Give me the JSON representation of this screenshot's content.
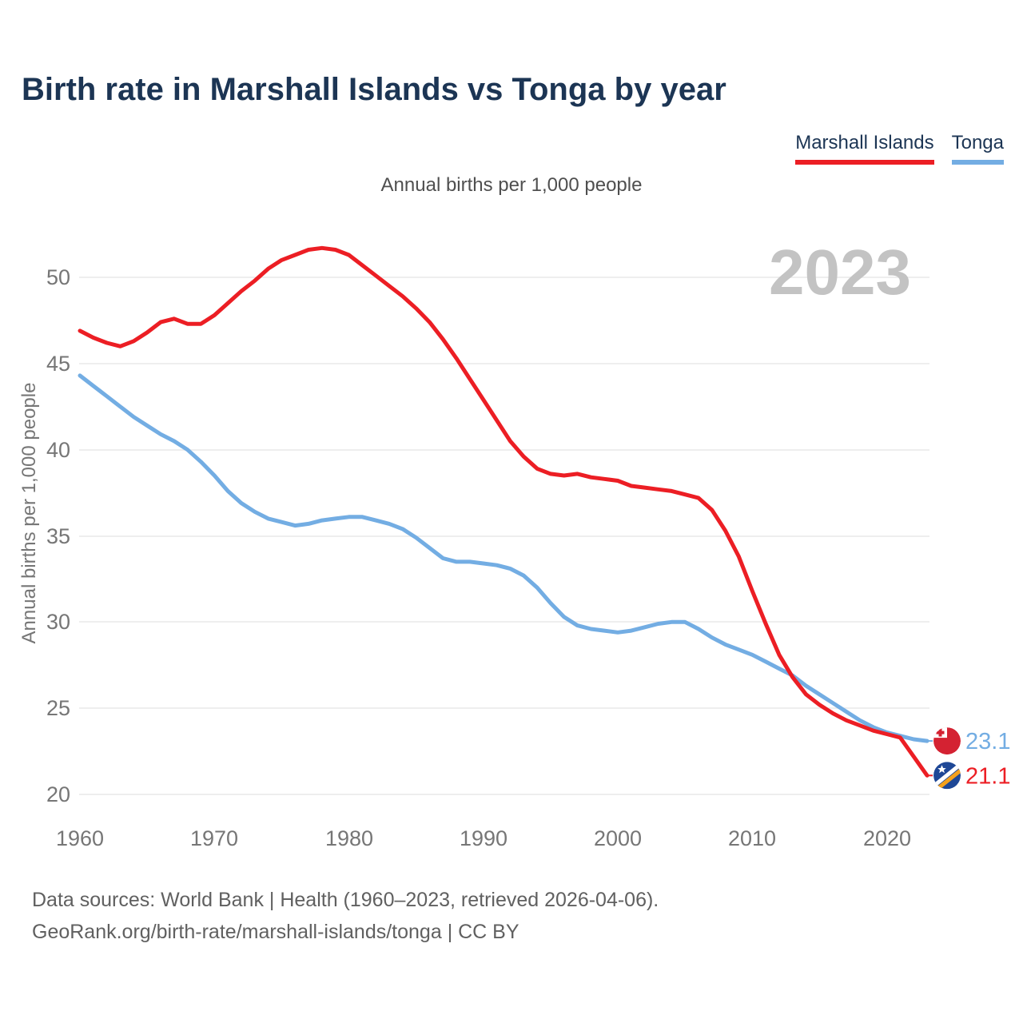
{
  "title": "Birth rate in Marshall Islands vs Tonga by year",
  "subtitle": "Annual births per 1,000 people",
  "watermark": "2023",
  "legend": {
    "marshall_label": "Marshall Islands",
    "tonga_label": "Tonga"
  },
  "footer": {
    "line1": "Data sources: World Bank | Health (1960–2023, retrieved 2026-04-06).",
    "line2": "GeoRank.org/birth-rate/marshall-islands/tonga | CC BY"
  },
  "colors": {
    "marshall_red": "#ec1e24",
    "tonga_blue": "#73ade3",
    "title_navy": "#1c3554",
    "axis_gray": "#767676",
    "watermark_gray": "#c3c3c3",
    "gridline_gray": "#e9e9e9",
    "tonga_flag_red": "#d42232",
    "marshall_flag_blue": "#1e4796",
    "marshall_flag_orange": "#f5a11c"
  },
  "chart_data": {
    "type": "line",
    "title": "Annual births per 1,000 people",
    "xlabel": "",
    "ylabel": "Annual births per 1,000 people",
    "x_range": [
      1960,
      2023
    ],
    "ylim": [
      19,
      52.5
    ],
    "grid": "horizontal",
    "legend_position": "top-right",
    "ytick_labels": [
      "50",
      "45",
      "40",
      "35",
      "30",
      "25",
      "20"
    ],
    "yticks": [
      50,
      45,
      40,
      35,
      30,
      25,
      20
    ],
    "xtick_labels": [
      "1960",
      "1970",
      "1980",
      "1990",
      "2000",
      "2010",
      "2020"
    ],
    "xticks": [
      1960,
      1970,
      1980,
      1990,
      2000,
      2010,
      2020
    ],
    "x": [
      1960,
      1961,
      1962,
      1963,
      1964,
      1965,
      1966,
      1967,
      1968,
      1969,
      1970,
      1971,
      1972,
      1973,
      1974,
      1975,
      1976,
      1977,
      1978,
      1979,
      1980,
      1981,
      1982,
      1983,
      1984,
      1985,
      1986,
      1987,
      1988,
      1989,
      1990,
      1991,
      1992,
      1993,
      1994,
      1995,
      1996,
      1997,
      1998,
      1999,
      2000,
      2001,
      2002,
      2003,
      2004,
      2005,
      2006,
      2007,
      2008,
      2009,
      2010,
      2011,
      2012,
      2013,
      2014,
      2015,
      2016,
      2017,
      2018,
      2019,
      2020,
      2021,
      2022,
      2023
    ],
    "series": [
      {
        "name": "Marshall Islands",
        "color": "#ec1e24",
        "end_label": "21.1",
        "end_value": 21.1,
        "values": [
          46.9,
          46.5,
          46.2,
          46.0,
          46.3,
          46.8,
          47.4,
          47.6,
          47.3,
          47.3,
          47.8,
          48.5,
          49.2,
          49.8,
          50.5,
          51.0,
          51.3,
          51.6,
          51.7,
          51.6,
          51.3,
          50.7,
          50.1,
          49.5,
          48.9,
          48.2,
          47.4,
          46.4,
          45.3,
          44.1,
          42.9,
          41.7,
          40.5,
          39.6,
          38.9,
          38.6,
          38.5,
          38.6,
          38.4,
          38.3,
          38.2,
          37.9,
          37.8,
          37.7,
          37.6,
          37.4,
          37.2,
          36.5,
          35.3,
          33.8,
          31.8,
          29.9,
          28.1,
          26.8,
          25.8,
          25.2,
          24.7,
          24.3,
          24.0,
          23.7,
          23.5,
          23.3,
          22.2,
          21.1
        ]
      },
      {
        "name": "Tonga",
        "color": "#73ade3",
        "end_label": "23.1",
        "end_value": 23.1,
        "values": [
          44.3,
          43.7,
          43.1,
          42.5,
          41.9,
          41.4,
          40.9,
          40.5,
          40.0,
          39.3,
          38.5,
          37.6,
          36.9,
          36.4,
          36.0,
          35.8,
          35.6,
          35.7,
          35.9,
          36.0,
          36.1,
          36.1,
          35.9,
          35.7,
          35.4,
          34.9,
          34.3,
          33.7,
          33.5,
          33.5,
          33.4,
          33.3,
          33.1,
          32.7,
          32.0,
          31.1,
          30.3,
          29.8,
          29.6,
          29.5,
          29.4,
          29.5,
          29.7,
          29.9,
          30.0,
          30.0,
          29.6,
          29.1,
          28.7,
          28.4,
          28.1,
          27.7,
          27.3,
          26.9,
          26.3,
          25.8,
          25.3,
          24.8,
          24.3,
          23.9,
          23.6,
          23.4,
          23.2,
          23.1
        ]
      }
    ]
  }
}
